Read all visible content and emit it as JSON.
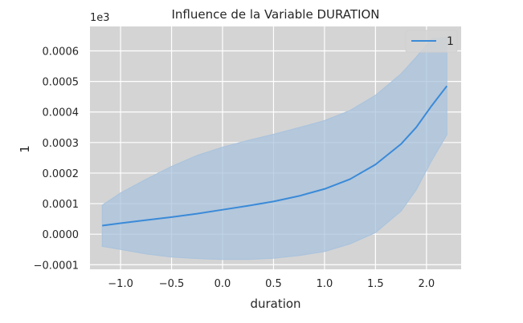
{
  "chart_data": {
    "type": "line",
    "title": "Influence de la Variable DURATION",
    "xlabel": "duration",
    "ylabel": "1",
    "y_offset_label": "1e3",
    "xlim": [
      -1.3,
      2.34
    ],
    "ylim": [
      -0.000115,
      0.00068
    ],
    "x_ticks": [
      -1.0,
      -0.5,
      0.0,
      0.5,
      1.0,
      1.5,
      2.0
    ],
    "x_tick_labels": [
      "−1.0",
      "−0.5",
      "0.0",
      "0.5",
      "1.0",
      "1.5",
      "2.0"
    ],
    "y_ticks": [
      -0.0001,
      0.0,
      0.0001,
      0.0002,
      0.0003,
      0.0004,
      0.0005,
      0.0006
    ],
    "y_tick_labels": [
      "−0.0001",
      "0.0000",
      "0.0001",
      "0.0002",
      "0.0003",
      "0.0004",
      "0.0005",
      "0.0006"
    ],
    "grid": true,
    "legend_position": "top-right",
    "background_color": "#d4d4d4",
    "grid_color": "#ffffff",
    "series": [
      {
        "name": "1",
        "color": "#3a8ad8",
        "band_color": "#a9c3dd",
        "x": [
          -1.18,
          -1.0,
          -0.75,
          -0.5,
          -0.25,
          0.0,
          0.25,
          0.5,
          0.75,
          1.0,
          1.25,
          1.5,
          1.75,
          1.9,
          2.05,
          2.2
        ],
        "y": [
          2.8e-05,
          3.6e-05,
          4.6e-05,
          5.6e-05,
          6.7e-05,
          8e-05,
          9.3e-05,
          0.000107,
          0.000125,
          0.000148,
          0.00018,
          0.000228,
          0.000295,
          0.00035,
          0.00042,
          0.000485
        ],
        "lower": [
          -4e-05,
          -5e-05,
          -6.5e-05,
          -7.5e-05,
          -8e-05,
          -8.3e-05,
          -8.3e-05,
          -7.9e-05,
          -7e-05,
          -5.7e-05,
          -3.2e-05,
          5e-06,
          7.5e-05,
          0.000145,
          0.00024,
          0.000325
        ],
        "upper": [
          9.5e-05,
          0.000135,
          0.00018,
          0.000222,
          0.000258,
          0.000285,
          0.000307,
          0.000327,
          0.000349,
          0.000372,
          0.000405,
          0.000455,
          0.000525,
          0.00058,
          0.00064,
          0.000645
        ]
      }
    ]
  }
}
